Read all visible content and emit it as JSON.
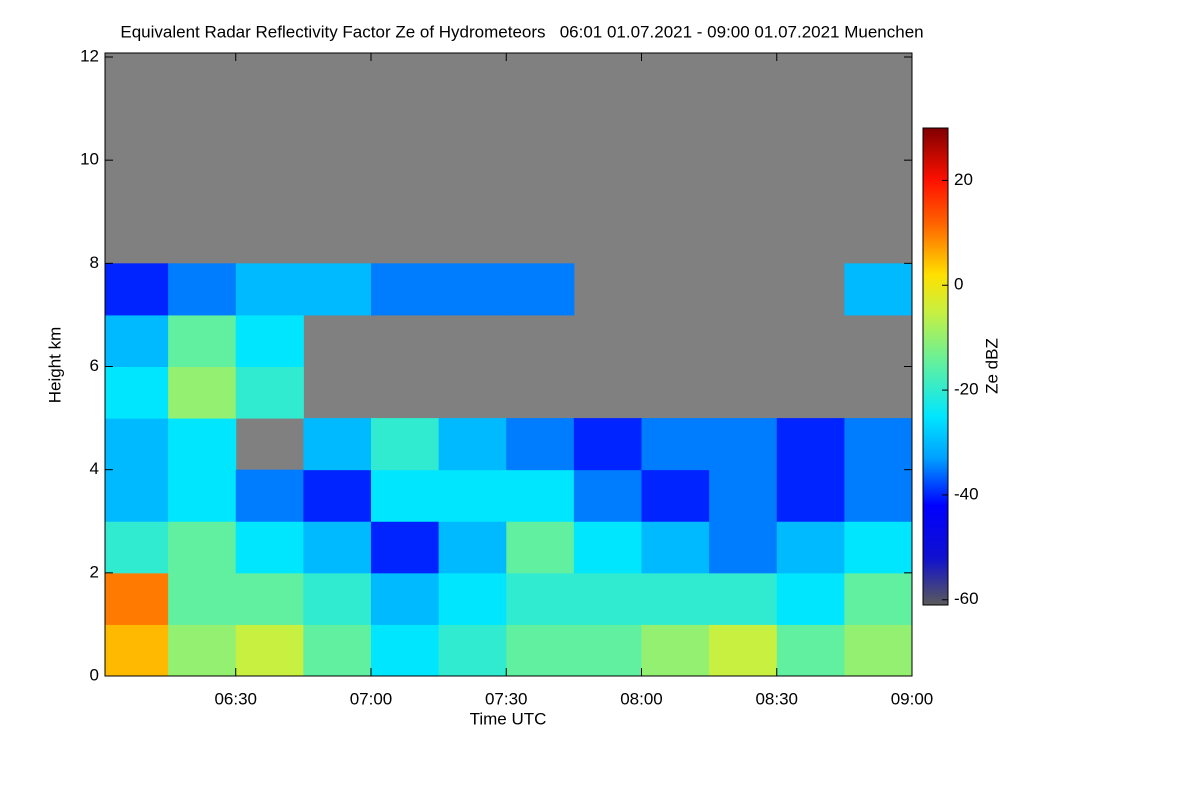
{
  "chart_data": {
    "type": "heatmap",
    "title": "Equivalent Radar Reflectivity Factor Ze of Hydrometeors   06:01 01.07.2021 - 09:00 01.07.2021 Muenchen",
    "xlabel": "Time UTC",
    "ylabel": "Height km",
    "colorbar_label": "Ze dBZ",
    "xlim": [
      361,
      540
    ],
    "xticks": [
      {
        "value": 390,
        "label": "06:30"
      },
      {
        "value": 420,
        "label": "07:00"
      },
      {
        "value": 450,
        "label": "07:30"
      },
      {
        "value": 480,
        "label": "08:00"
      },
      {
        "value": 510,
        "label": "08:30"
      },
      {
        "value": 540,
        "label": "09:00"
      }
    ],
    "ylim": [
      0,
      12
    ],
    "yticks": [
      0,
      2,
      4,
      6,
      8,
      10,
      12
    ],
    "zlim": [
      -61,
      30
    ],
    "zticks": [
      20,
      0,
      -20,
      -40,
      -60
    ],
    "nodata_color": "#808080",
    "colorscale": [
      [
        -61,
        "#5a5a5a"
      ],
      [
        -52,
        "#1010d0"
      ],
      [
        -42,
        "#0000ff"
      ],
      [
        -33,
        "#00a0ff"
      ],
      [
        -25,
        "#00e6ff"
      ],
      [
        -15,
        "#60f0a0"
      ],
      [
        -5,
        "#c8f040"
      ],
      [
        2,
        "#ffe000"
      ],
      [
        12,
        "#ff6000"
      ],
      [
        20,
        "#ff1000"
      ],
      [
        30,
        "#800000"
      ]
    ],
    "xbins": [
      361,
      375,
      390,
      405,
      420,
      435,
      450,
      465,
      480,
      495,
      510,
      525,
      540
    ],
    "ybins": [
      0,
      1,
      2,
      3,
      4,
      5,
      6,
      7,
      8,
      9,
      10,
      11,
      12
    ],
    "z": [
      [
        5,
        -10,
        -5,
        -15,
        -25,
        -20,
        -15,
        -15,
        -10,
        -5,
        -15,
        -10
      ],
      [
        10,
        -15,
        -15,
        -20,
        -30,
        -25,
        -20,
        -20,
        -20,
        -20,
        -25,
        -15
      ],
      [
        -20,
        -15,
        -25,
        -30,
        -40,
        -30,
        -15,
        -25,
        -30,
        -35,
        -30,
        -25
      ],
      [
        -30,
        -25,
        -35,
        -40,
        -25,
        -25,
        -25,
        -35,
        -40,
        -35,
        -40,
        -35
      ],
      [
        -30,
        -25,
        null,
        -30,
        -20,
        -30,
        -35,
        -40,
        -35,
        -35,
        -40,
        -35
      ],
      [
        -25,
        -10,
        -20,
        null,
        null,
        null,
        null,
        null,
        null,
        null,
        null,
        null
      ],
      [
        -30,
        -15,
        -25,
        null,
        null,
        null,
        null,
        null,
        null,
        null,
        null,
        null
      ],
      [
        -40,
        -35,
        -30,
        -30,
        -35,
        -35,
        -35,
        null,
        null,
        null,
        null,
        -30
      ],
      [
        null,
        null,
        null,
        null,
        null,
        null,
        null,
        null,
        null,
        null,
        null,
        null
      ],
      [
        null,
        null,
        null,
        null,
        null,
        null,
        null,
        null,
        null,
        null,
        null,
        null
      ],
      [
        null,
        null,
        null,
        null,
        null,
        null,
        null,
        null,
        null,
        null,
        null,
        null
      ],
      [
        null,
        null,
        null,
        null,
        null,
        null,
        null,
        null,
        null,
        null,
        null,
        null
      ]
    ]
  }
}
